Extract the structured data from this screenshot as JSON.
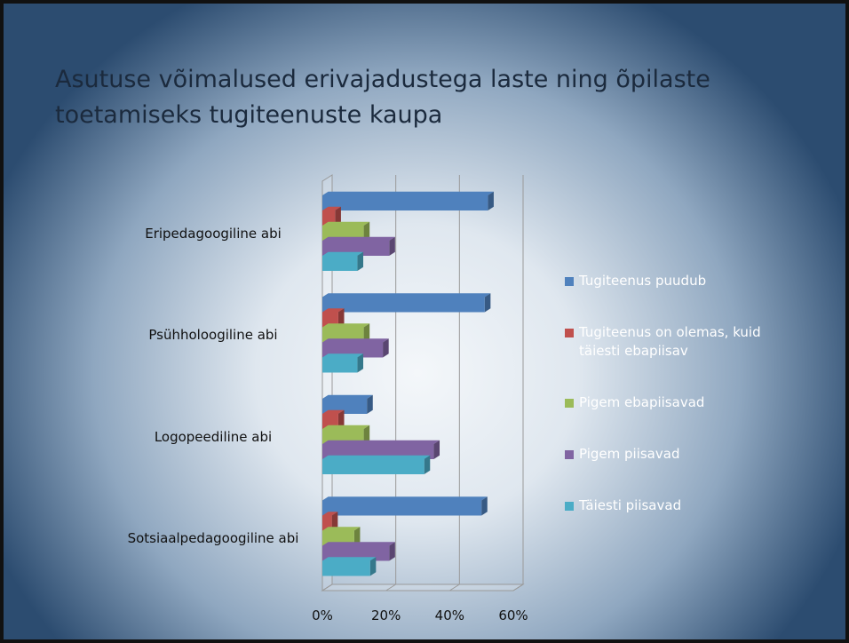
{
  "chart_data": {
    "type": "bar",
    "orientation": "horizontal",
    "title": "Asutuse võimalused erivajadustega laste ning õpilaste toetamiseks tugiteenuste kaupa",
    "categories": [
      "Eripedagoogiline abi",
      "Psühholoogiline abi",
      "Logopeediline abi",
      "Sotsiaalpedagoogiline abi"
    ],
    "series": [
      {
        "name": "Tugiteenus puudub",
        "color": "#4f81bd",
        "values": [
          52,
          51,
          14,
          50
        ]
      },
      {
        "name": "Tugiteenus on olemas, kuid täiesti ebapiisav",
        "color": "#c0504d",
        "values": [
          4,
          5,
          5,
          3
        ]
      },
      {
        "name": "Pigem ebapiisavad",
        "color": "#9bbb59",
        "values": [
          13,
          13,
          13,
          10
        ]
      },
      {
        "name": "Pigem piisavad",
        "color": "#8064a2",
        "values": [
          21,
          19,
          35,
          21
        ]
      },
      {
        "name": "Täiesti piisavad",
        "color": "#4bacc6",
        "values": [
          11,
          11,
          32,
          15
        ]
      }
    ],
    "xlim": [
      0,
      60
    ],
    "xticks": [
      {
        "value": 0,
        "label": "0%"
      },
      {
        "value": 20,
        "label": "20%"
      },
      {
        "value": 40,
        "label": "40%"
      },
      {
        "value": 60,
        "label": "60%"
      }
    ],
    "grid": true,
    "legend": "right"
  }
}
